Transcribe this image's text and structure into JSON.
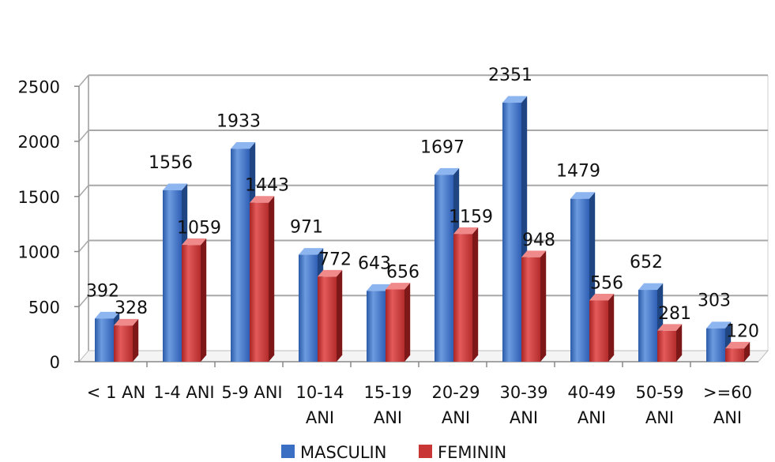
{
  "chart_data": {
    "type": "bar",
    "style": "3d-clustered-column",
    "categories": [
      [
        "< 1 AN"
      ],
      [
        "1-4 ANI"
      ],
      [
        "5-9 ANI"
      ],
      [
        "10-14",
        "ANI"
      ],
      [
        "15-19",
        "ANI"
      ],
      [
        "20-29",
        "ANI"
      ],
      [
        "30-39",
        "ANI"
      ],
      [
        "40-49",
        "ANI"
      ],
      [
        "50-59",
        "ANI"
      ],
      [
        ">=60",
        "ANI"
      ]
    ],
    "series": [
      {
        "name": "MASCULIN",
        "color": "#3a6fc4",
        "values": [
          392,
          1556,
          1933,
          971,
          643,
          1697,
          2351,
          1479,
          652,
          303
        ]
      },
      {
        "name": "FEMININ",
        "color": "#c93636",
        "values": [
          328,
          1059,
          1443,
          772,
          656,
          1159,
          948,
          556,
          281,
          120
        ]
      }
    ],
    "data_labels": [
      [
        "392",
        "1556",
        "1933",
        "971",
        "643",
        "1697",
        "2351",
        "1479",
        "652",
        "303"
      ],
      [
        "328",
        "1059",
        "1443",
        "772",
        "656",
        "1159",
        "948",
        "556",
        "281",
        "120"
      ]
    ],
    "y_ticks": [
      "0",
      "500",
      "1000",
      "1500",
      "2000",
      "2500"
    ],
    "ylim": [
      0,
      2500
    ],
    "grid": true,
    "legend_position": "bottom",
    "title": "",
    "xlabel": "",
    "ylabel": ""
  }
}
